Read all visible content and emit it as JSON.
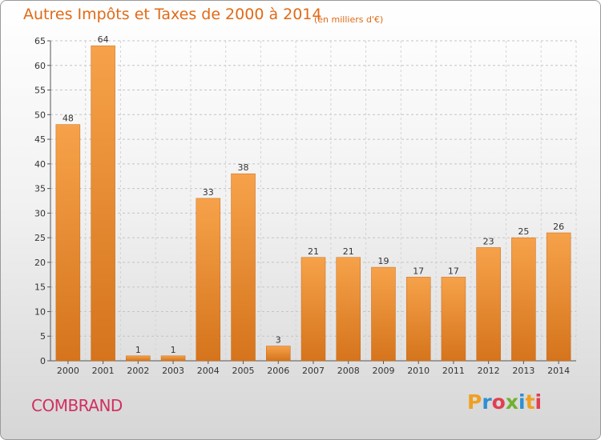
{
  "title": "Autres Impôts et Taxes de 2000 à 2014",
  "subtitle": "(en milliers d'€)",
  "commune": "COMBRAND",
  "logo": {
    "text": "Proxiti",
    "colors": [
      "#f0a020",
      "#2f8fd0",
      "#e04050",
      "#70b030",
      "#2f8fd0",
      "#f0a020",
      "#e04050"
    ]
  },
  "chart_data": {
    "type": "bar",
    "title": "Autres Impôts et Taxes de 2000 à 2014",
    "subtitle": "(en milliers d'€)",
    "xlabel": "",
    "ylabel": "",
    "categories": [
      "2000",
      "2001",
      "2002",
      "2003",
      "2004",
      "2005",
      "2006",
      "2007",
      "2008",
      "2009",
      "2010",
      "2011",
      "2012",
      "2013",
      "2014"
    ],
    "values": [
      48,
      64,
      1,
      1,
      33,
      38,
      3,
      21,
      21,
      19,
      17,
      17,
      23,
      25,
      26
    ],
    "ylim": [
      0,
      65
    ],
    "yticks": [
      0,
      5,
      10,
      15,
      20,
      25,
      30,
      35,
      40,
      45,
      50,
      55,
      60,
      65
    ],
    "grid": true,
    "bar_color": "#f0922e",
    "bar_color_dark": "#d0701a"
  }
}
